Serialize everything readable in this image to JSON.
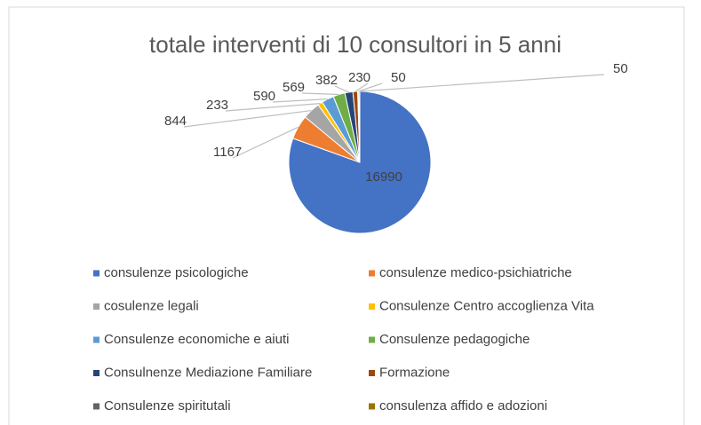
{
  "chart_data": {
    "type": "pie",
    "title": "totale interventi di 10 consultori in 5 anni",
    "categories": [
      "consulenze psicologiche",
      "consulenze medico-psichiatriche",
      "cosulenze legali",
      "Consulenze Centro accoglienza Vita",
      "Consulenze economiche e aiuti",
      "Consulenze pedagogiche",
      "Consulnenze Mediazione Familiare",
      "Formazione",
      "Consulenze spiritutali",
      "consulenza affido e adozioni"
    ],
    "values": [
      16990,
      1167,
      844,
      233,
      590,
      569,
      382,
      230,
      50,
      50
    ],
    "colors": [
      "#4472c4",
      "#ed7d31",
      "#a5a5a5",
      "#ffc000",
      "#5b9bd5",
      "#70ad47",
      "#264478",
      "#9e480e",
      "#636363",
      "#997300"
    ],
    "legend": "bottom"
  }
}
